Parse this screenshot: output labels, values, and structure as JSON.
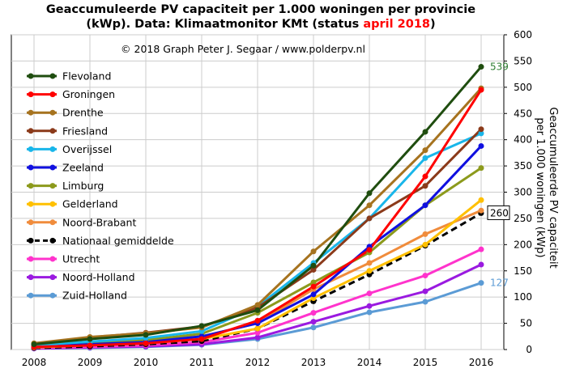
{
  "chart_data": {
    "type": "line",
    "title_line1": "Geaccumuleerde PV capaciteit per 1.000 woningen per provincie",
    "title_line2_prefix": "(kWp). Data: Klimaatmonitor KMt (status ",
    "title_line2_highlight": "april 2018",
    "title_line2_suffix": ")",
    "title_highlight_color": "#ff0000",
    "credit": "© 2018 Graph Peter J. Segaar / www.polderpv.nl",
    "ylabel_line1": "Geaccumuleerde PV capaciteit",
    "ylabel_line2": "per 1.000 woningen (kWp)",
    "ylim": [
      0,
      600
    ],
    "yticks": [
      "0",
      "50",
      "100",
      "150",
      "200",
      "250",
      "300",
      "350",
      "400",
      "450",
      "500",
      "550",
      "600"
    ],
    "x": [
      "2008",
      "2009",
      "2010",
      "2011",
      "2012",
      "2013",
      "2014",
      "2015",
      "2016"
    ],
    "grid": true,
    "legend_position": "top-left",
    "series": [
      {
        "name": "Flevoland",
        "color": "#1f4d0f",
        "values": [
          10,
          20,
          28,
          45,
          75,
          160,
          298,
          415,
          539
        ]
      },
      {
        "name": "Groningen",
        "color": "#ff0000",
        "values": [
          5,
          8,
          12,
          20,
          55,
          120,
          190,
          330,
          495
        ]
      },
      {
        "name": "Drenthe",
        "color": "#a6731f",
        "values": [
          12,
          24,
          31,
          42,
          85,
          187,
          275,
          380,
          498
        ]
      },
      {
        "name": "Friesland",
        "color": "#8b3a1a",
        "values": [
          10,
          23,
          32,
          44,
          80,
          152,
          250,
          312,
          420
        ]
      },
      {
        "name": "Overijssel",
        "color": "#19b6ea",
        "values": [
          8,
          15,
          22,
          35,
          82,
          165,
          250,
          365,
          412
        ]
      },
      {
        "name": "Zeeland",
        "color": "#1010e0",
        "values": [
          5,
          10,
          14,
          25,
          50,
          105,
          196,
          275,
          388
        ]
      },
      {
        "name": "Limburg",
        "color": "#8c9a1c",
        "values": [
          6,
          12,
          18,
          30,
          70,
          128,
          185,
          275,
          346
        ]
      },
      {
        "name": "Gelderland",
        "color": "#ffc000",
        "values": [
          4,
          8,
          12,
          20,
          40,
          98,
          150,
          200,
          285
        ]
      },
      {
        "name": "Noord-Brabant",
        "color": "#f08c3c",
        "values": [
          6,
          10,
          16,
          25,
          50,
          115,
          165,
          220,
          265
        ]
      },
      {
        "name": "Nationaal gemiddelde",
        "color": "#000000",
        "dashed": true,
        "values": [
          3,
          6,
          10,
          16,
          40,
          92,
          143,
          198,
          260
        ]
      },
      {
        "name": "Utrecht",
        "color": "#ff33cc",
        "values": [
          3,
          5,
          8,
          14,
          32,
          70,
          107,
          141,
          191
        ]
      },
      {
        "name": "Noord-Holland",
        "color": "#9a1ae0",
        "values": [
          2,
          4,
          6,
          10,
          23,
          53,
          83,
          111,
          162
        ]
      },
      {
        "name": "Zuid-Holland",
        "color": "#5b9bd5",
        "values": [
          2,
          3,
          5,
          9,
          20,
          42,
          71,
          91,
          127
        ]
      }
    ],
    "end_labels": [
      {
        "text": "539",
        "series": "Flevoland",
        "color": "#2e7d32",
        "boxed": false
      },
      {
        "text": "260",
        "series": "Nationaal gemiddelde",
        "color": "#000000",
        "boxed": true
      },
      {
        "text": "127",
        "series": "Zuid-Holland",
        "color": "#5b9bd5",
        "boxed": false
      }
    ]
  }
}
